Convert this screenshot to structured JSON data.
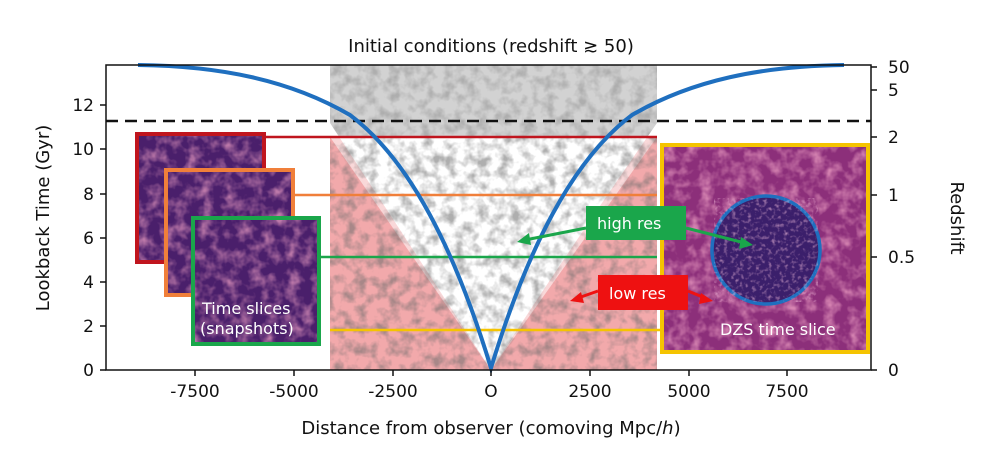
{
  "title": "Initial conditions (redshift ≳ 50)",
  "xlabel": "Distance from observer (comoving Mpc/",
  "xlabel_italic": "h",
  "xlabel_close": ")",
  "ylabel_left": "Lookback Time (Gyr)",
  "ylabel_right": "Redshift",
  "x_ticks": [
    "-7500",
    "-5000",
    "-2500",
    "O",
    "2500",
    "5000",
    "7500"
  ],
  "y_ticks_left": [
    "0",
    "2",
    "4",
    "6",
    "8",
    "10",
    "12"
  ],
  "y_ticks_right": [
    "0",
    "0.5",
    "1",
    "2",
    "5",
    "50"
  ],
  "labels": {
    "time_slices_line1": "Time slices",
    "time_slices_line2": "(snapshots)",
    "dzs": "DZS time slice",
    "high_res": "high res",
    "low_res": "low res"
  },
  "colors": {
    "cone": "#1f6fbf",
    "low_res_region": "#f2a9ab",
    "ic_region": "#d2d2d2",
    "slice_red": "#c0151e",
    "slice_orange": "#f07f3a",
    "slice_green": "#1aa64b",
    "slice_yellow": "#f5c400",
    "high_res_badge": "#1aa64b",
    "low_res_badge": "#ee1111"
  },
  "chart_data": {
    "type": "diagram",
    "x_range": [
      -9800,
      9800
    ],
    "y_range_gyr": [
      0,
      13.7
    ],
    "dashed_line_gyr": 11.2,
    "high_res_width_mpc": 4100,
    "slices_gyr": [
      10.5,
      7.9,
      5.1,
      1.8
    ],
    "cone_peak_gyr": 13.7
  }
}
